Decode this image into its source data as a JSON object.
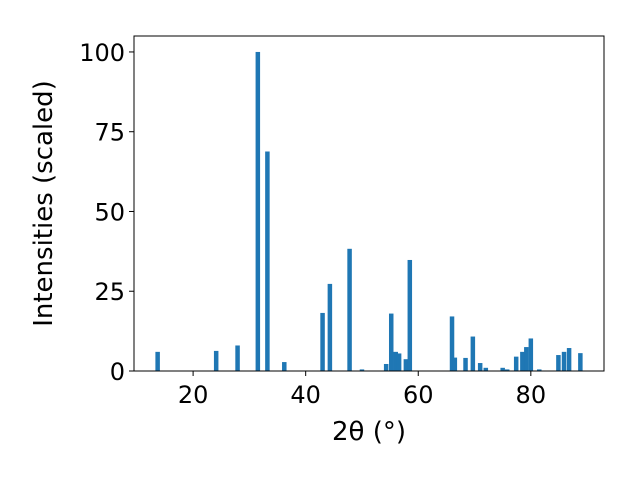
{
  "chart_data": {
    "type": "bar",
    "title": "",
    "xlabel": "2θ (°)",
    "ylabel": "Intensities (scaled)",
    "xlim": [
      9.5,
      93
    ],
    "ylim": [
      0,
      105
    ],
    "xticks": [
      20,
      40,
      60,
      80
    ],
    "yticks": [
      0,
      25,
      50,
      75,
      100
    ],
    "grid": false,
    "legend": "none",
    "bar_color": "#1f77b4",
    "x": [
      13.7,
      24.1,
      27.9,
      31.5,
      33.2,
      36.2,
      43.0,
      44.3,
      47.8,
      50.0,
      54.3,
      55.2,
      56.0,
      56.6,
      57.8,
      58.5,
      66.0,
      66.5,
      68.4,
      69.7,
      71.0,
      72.0,
      75.0,
      75.8,
      77.4,
      78.5,
      79.2,
      80.0,
      81.5,
      84.9,
      85.9,
      86.8,
      88.8
    ],
    "values": [
      6.0,
      6.3,
      8.0,
      100.0,
      68.8,
      2.8,
      18.2,
      27.3,
      38.3,
      0.5,
      2.2,
      18.0,
      6.0,
      5.5,
      3.7,
      34.8,
      17.1,
      4.2,
      4.1,
      10.8,
      2.5,
      1.0,
      1.0,
      0.5,
      4.5,
      6.0,
      7.5,
      10.2,
      0.5,
      5.0,
      6.0,
      7.2,
      5.6
    ]
  }
}
